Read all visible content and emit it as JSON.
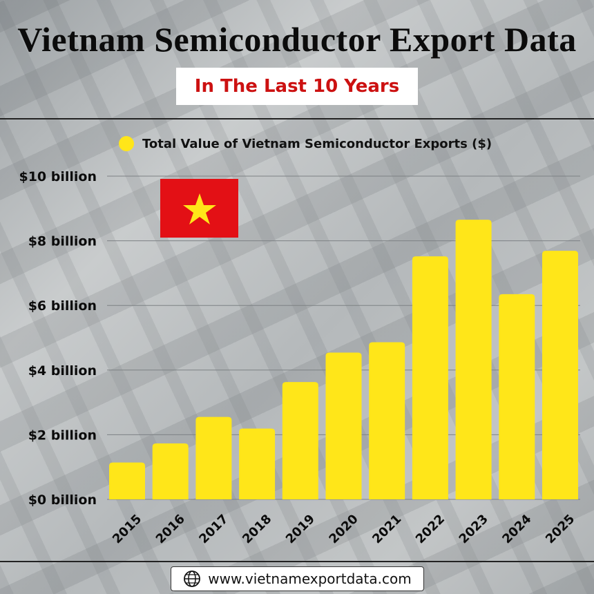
{
  "header": {
    "title": "Vietnam Semiconductor Export Data",
    "subtitle": "In The Last 10 Years"
  },
  "footer": {
    "website": "www.vietnamexportdata.com",
    "icon": "globe-icon"
  },
  "flag": {
    "icon": "vietnam-flag",
    "colors": {
      "field": "#e31015",
      "star": "#ffe619"
    }
  },
  "chart_data": {
    "type": "bar",
    "legend": {
      "label": "Total Value of Vietnam Semiconductor Exports ($)",
      "position": "top"
    },
    "categories": [
      "2015",
      "2016",
      "2017",
      "2018",
      "2019",
      "2020",
      "2021",
      "2022",
      "2023",
      "2024",
      "2025"
    ],
    "series": [
      {
        "name": "Total Value of Vietnam Semiconductor Exports ($)",
        "values": [
          1.14,
          1.73,
          2.55,
          2.19,
          3.63,
          4.54,
          4.86,
          7.52,
          8.65,
          6.35,
          7.69
        ],
        "color": "#ffe619"
      }
    ],
    "unit": "billion USD",
    "ylim": [
      0,
      10
    ],
    "yticks": [
      {
        "value": 0,
        "label": "$0 billion"
      },
      {
        "value": 2,
        "label": "$2 billion"
      },
      {
        "value": 4,
        "label": "$4 billion"
      },
      {
        "value": 6,
        "label": "$6 billion"
      },
      {
        "value": 8,
        "label": "$8 billion"
      },
      {
        "value": 10,
        "label": "$10 billion"
      }
    ],
    "grid": true,
    "xlabel": "",
    "ylabel": ""
  }
}
